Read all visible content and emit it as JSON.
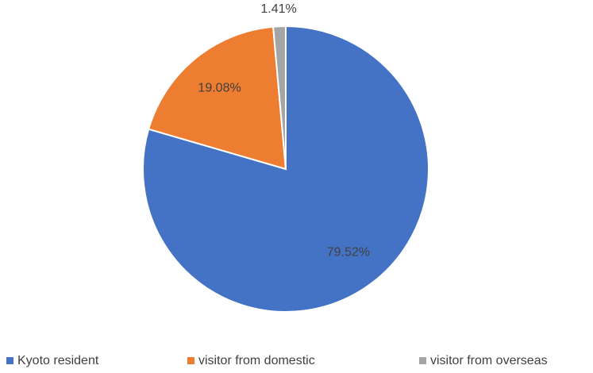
{
  "chart_data": {
    "type": "pie",
    "categories": [
      "Kyoto resident",
      "visitor from domestic",
      "visitor from overseas"
    ],
    "values": [
      79.52,
      19.08,
      1.41
    ],
    "value_labels": [
      "79.52%",
      "19.08%",
      "1.41%"
    ],
    "colors": [
      "#4472c4",
      "#ed7d31",
      "#a5a5a5"
    ],
    "legend": "bottom"
  }
}
